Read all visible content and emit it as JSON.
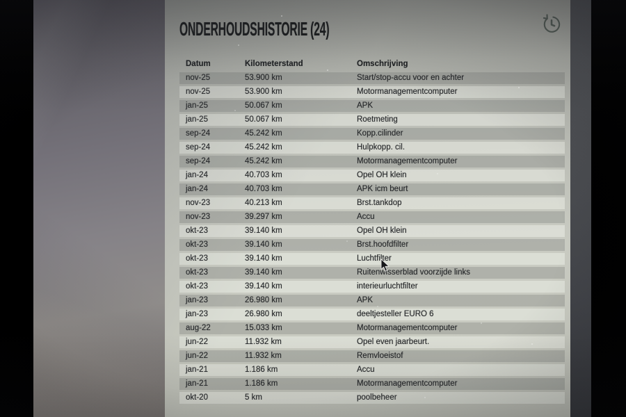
{
  "header": {
    "title": "ONDERHOUDSHISTORIE (24)",
    "count": 24,
    "icon": "history-clock-icon"
  },
  "table": {
    "columns": [
      "Datum",
      "Kilometerstand",
      "Omschrijving"
    ],
    "rows": [
      {
        "date": "nov-25",
        "km": "53.900 km",
        "desc": "Start/stop-accu voor en achter"
      },
      {
        "date": "nov-25",
        "km": "53.900 km",
        "desc": "Motormanagementcomputer"
      },
      {
        "date": "jan-25",
        "km": "50.067 km",
        "desc": "APK"
      },
      {
        "date": "jan-25",
        "km": "50.067 km",
        "desc": "Roetmeting"
      },
      {
        "date": "sep-24",
        "km": "45.242 km",
        "desc": "Kopp.cilinder"
      },
      {
        "date": "sep-24",
        "km": "45.242 km",
        "desc": "Hulpkopp. cil."
      },
      {
        "date": "sep-24",
        "km": "45.242 km",
        "desc": "Motormanagementcomputer"
      },
      {
        "date": "jan-24",
        "km": "40.703 km",
        "desc": "Opel OH klein"
      },
      {
        "date": "jan-24",
        "km": "40.703 km",
        "desc": "APK icm beurt"
      },
      {
        "date": "nov-23",
        "km": "40.213 km",
        "desc": "Brst.tankdop"
      },
      {
        "date": "nov-23",
        "km": "39.297 km",
        "desc": "Accu"
      },
      {
        "date": "okt-23",
        "km": "39.140 km",
        "desc": "Opel OH klein"
      },
      {
        "date": "okt-23",
        "km": "39.140 km",
        "desc": "Brst.hoofdfilter"
      },
      {
        "date": "okt-23",
        "km": "39.140 km",
        "desc": "Luchtfilter"
      },
      {
        "date": "okt-23",
        "km": "39.140 km",
        "desc": "Ruitenwisserblad voorzijde links"
      },
      {
        "date": "okt-23",
        "km": "39.140 km",
        "desc": "interieurluchtfilter"
      },
      {
        "date": "jan-23",
        "km": "26.980 km",
        "desc": "APK"
      },
      {
        "date": "jan-23",
        "km": "26.980 km",
        "desc": "deeltjesteller EURO 6"
      },
      {
        "date": "aug-22",
        "km": "15.033 km",
        "desc": "Motormanagementcomputer"
      },
      {
        "date": "jun-22",
        "km": "11.932 km",
        "desc": "Opel even jaarbeurt."
      },
      {
        "date": "jun-22",
        "km": "11.932 km",
        "desc": "Remvloeistof"
      },
      {
        "date": "jan-21",
        "km": "1.186 km",
        "desc": "Accu"
      },
      {
        "date": "jan-21",
        "km": "1.186 km",
        "desc": "Motormanagementcomputer"
      },
      {
        "date": "okt-20",
        "km": "5 km",
        "desc": "poolbeheer"
      }
    ]
  },
  "cursor": {
    "type": "arrow-pointer"
  },
  "colors": {
    "title_text": "#1c1e1f",
    "row_text": "#282a2c",
    "stripe_dark": "#b4b7af",
    "stripe_light": "#cdd0c7",
    "icon_accent": "#3d4a43"
  }
}
